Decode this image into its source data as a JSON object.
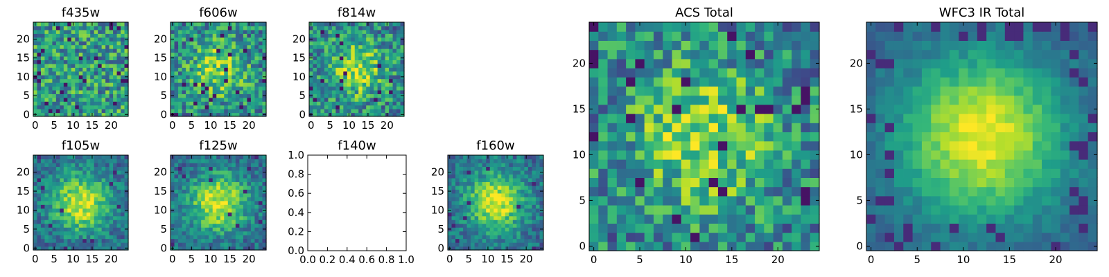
{
  "chart_data": [
    {
      "type": "heatmap",
      "title": "f435w",
      "xticks": [
        "0",
        "5",
        "10",
        "15",
        "20"
      ],
      "yticks": [
        "0",
        "5",
        "10",
        "15",
        "20"
      ],
      "xlim": [
        -0.5,
        24.5
      ],
      "ylim": [
        -0.5,
        24.5
      ],
      "grid": false,
      "pattern": "noise"
    },
    {
      "type": "heatmap",
      "title": "f606w",
      "xticks": [
        "0",
        "5",
        "10",
        "15",
        "20"
      ],
      "yticks": [
        "0",
        "5",
        "10",
        "15",
        "20"
      ],
      "xlim": [
        -0.5,
        24.5
      ],
      "ylim": [
        -0.5,
        24.5
      ],
      "grid": false,
      "pattern": "noisy-blob"
    },
    {
      "type": "heatmap",
      "title": "f814w",
      "xticks": [
        "0",
        "5",
        "10",
        "15",
        "20"
      ],
      "yticks": [
        "0",
        "5",
        "10",
        "15",
        "20"
      ],
      "xlim": [
        -0.5,
        24.5
      ],
      "ylim": [
        -0.5,
        24.5
      ],
      "grid": false,
      "pattern": "noisy-blob"
    },
    {
      "type": "heatmap",
      "title": "f105w",
      "xticks": [
        "0",
        "5",
        "10",
        "15",
        "20"
      ],
      "yticks": [
        "0",
        "5",
        "10",
        "15",
        "20"
      ],
      "xlim": [
        -0.5,
        24.5
      ],
      "ylim": [
        -0.5,
        24.5
      ],
      "grid": false,
      "pattern": "blob"
    },
    {
      "type": "heatmap",
      "title": "f125w",
      "xticks": [
        "0",
        "5",
        "10",
        "15",
        "20"
      ],
      "yticks": [
        "0",
        "5",
        "10",
        "15",
        "20"
      ],
      "xlim": [
        -0.5,
        24.5
      ],
      "ylim": [
        -0.5,
        24.5
      ],
      "grid": false,
      "pattern": "blob"
    },
    {
      "type": "empty",
      "title": "f140w",
      "xticks": [
        "0.0",
        "0.2",
        "0.4",
        "0.6",
        "0.8",
        "1.0"
      ],
      "yticks": [
        "0.0",
        "0.2",
        "0.4",
        "0.6",
        "0.8",
        "1.0"
      ],
      "xlim": [
        0,
        1
      ],
      "ylim": [
        0,
        1
      ],
      "grid": false
    },
    {
      "type": "heatmap",
      "title": "f160w",
      "xticks": [
        "0",
        "5",
        "10",
        "15",
        "20"
      ],
      "yticks": [
        "0",
        "5",
        "10",
        "15",
        "20"
      ],
      "xlim": [
        -0.5,
        24.5
      ],
      "ylim": [
        -0.5,
        24.5
      ],
      "grid": false,
      "pattern": "blob"
    },
    {
      "type": "heatmap",
      "title": "ACS Total",
      "xticks": [
        "0",
        "5",
        "10",
        "15",
        "20"
      ],
      "yticks": [
        "0",
        "5",
        "10",
        "15",
        "20"
      ],
      "xlim": [
        -0.5,
        24.5
      ],
      "ylim": [
        -0.5,
        24.5
      ],
      "grid": false,
      "pattern": "noisy-blob"
    },
    {
      "type": "heatmap",
      "title": "WFC3 IR Total",
      "xticks": [
        "0",
        "5",
        "10",
        "15",
        "20"
      ],
      "yticks": [
        "0",
        "5",
        "10",
        "15",
        "20"
      ],
      "xlim": [
        -0.5,
        24.5
      ],
      "ylim": [
        -0.5,
        24.5
      ],
      "grid": false,
      "pattern": "smooth-blob"
    }
  ],
  "colormap": "viridis"
}
